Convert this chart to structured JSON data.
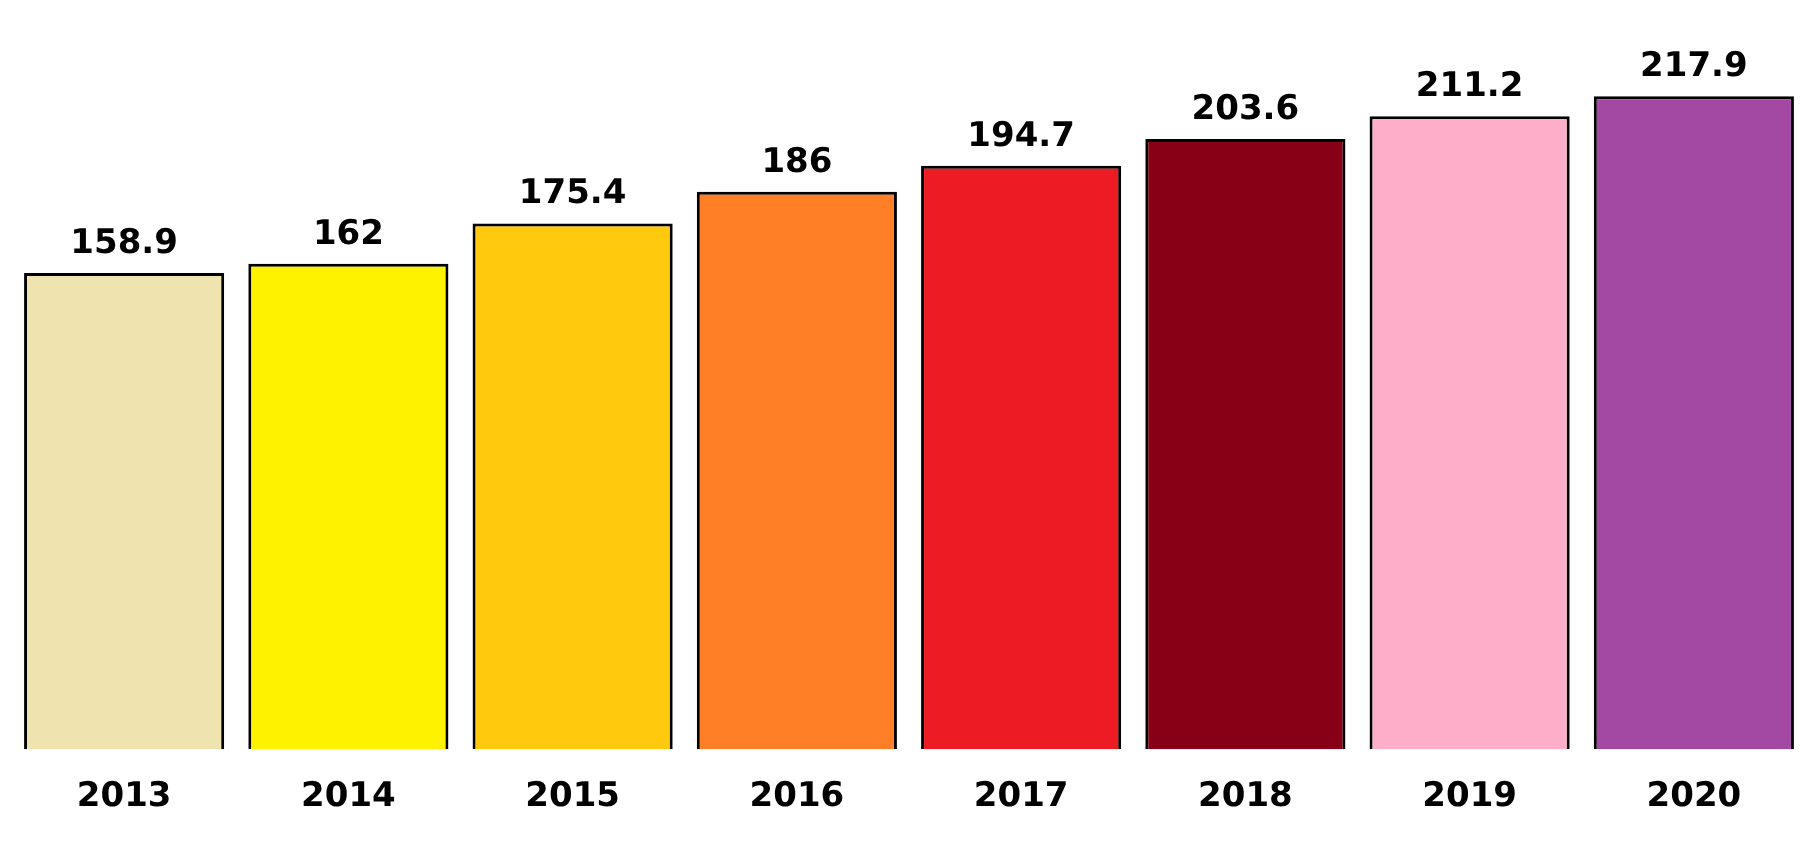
{
  "chart_data": {
    "type": "bar",
    "categories": [
      "2013",
      "2014",
      "2015",
      "2016",
      "2017",
      "2018",
      "2019",
      "2020"
    ],
    "values": [
      158.9,
      162,
      175.4,
      186,
      194.7,
      203.6,
      211.2,
      217.9
    ],
    "colors": [
      "#efe4b0",
      "#fff200",
      "#ffc90e",
      "#ff7f27",
      "#ed1c24",
      "#880015",
      "#ffaec9",
      "#a349a4"
    ],
    "data_labels": true,
    "grid": false,
    "legend": false,
    "tick_labels": "x"
  }
}
